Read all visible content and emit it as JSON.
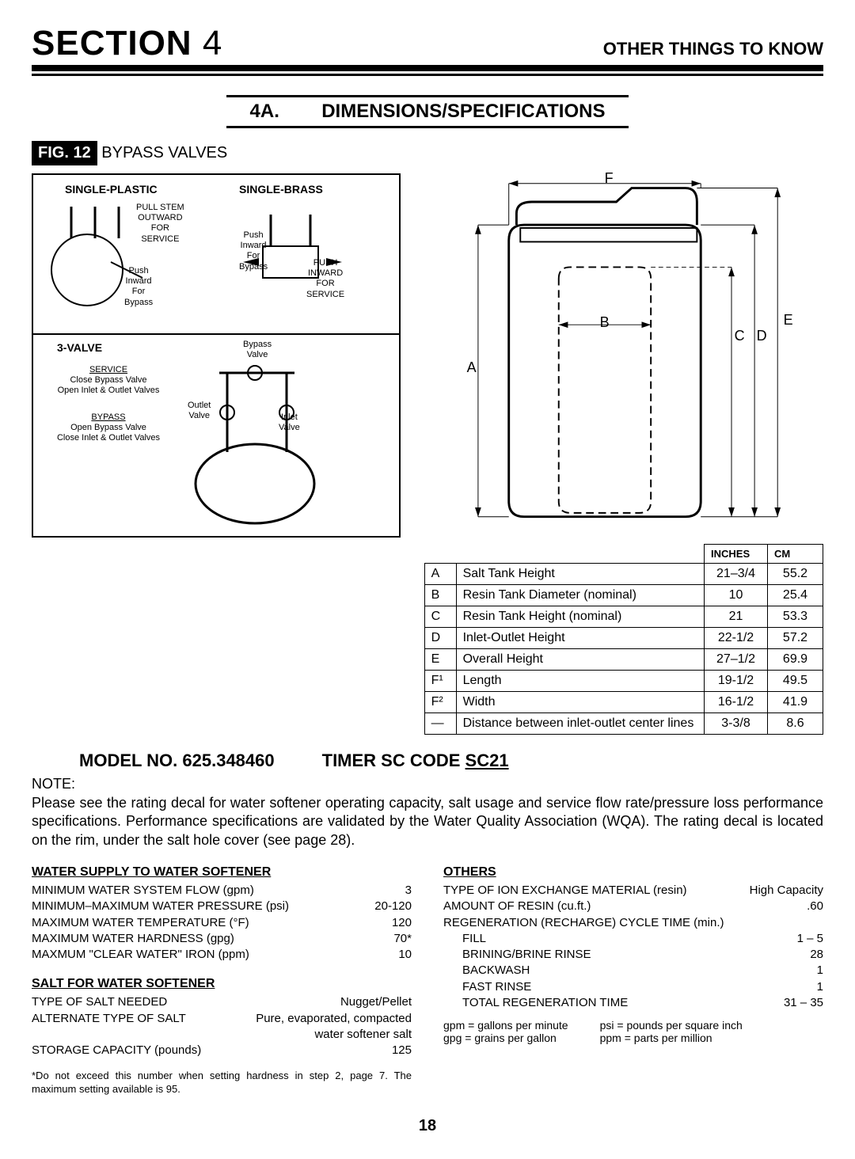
{
  "header": {
    "section_label": "SECTION",
    "section_number": "4",
    "right_title": "OTHER THINGS TO KNOW"
  },
  "subheader": {
    "label": "4A.",
    "title": "DIMENSIONS/SPECIFICATIONS"
  },
  "figure": {
    "prefix": "FIG. 12",
    "title": "BYPASS VALVES"
  },
  "diagram_labels": {
    "single_plastic": "SINGLE-PLASTIC",
    "single_brass": "SINGLE-BRASS",
    "pull_stem": "PULL STEM\nOUTWARD\nFOR\nSERVICE",
    "push_inward_bypass": "Push\nInward\nFor\nBypass",
    "push_inward_service": "PUSH\nINWARD\nFOR\nSERVICE",
    "three_valve": "3-VALVE",
    "bypass_valve": "Bypass\nValve",
    "service_text": "SERVICE\nClose Bypass Valve\nOpen Inlet & Outlet Valves",
    "bypass_text": "BYPASS\nOpen Bypass Valve\nClose Inlet & Outlet Valves",
    "outlet_valve": "Outlet\nValve",
    "inlet_valve": "Inlet\nValve",
    "push_inward_bypass2": "Push\nInward\nFor\nBypass"
  },
  "tank_letters": {
    "A": "A",
    "B": "B",
    "C": "C",
    "D": "D",
    "E": "E",
    "F": "F"
  },
  "dim_table": {
    "head_inches": "INCHES",
    "head_cm": "CM",
    "rows": [
      {
        "k": "A",
        "label": "Salt Tank Height",
        "in": "21–3/4",
        "cm": "55.2"
      },
      {
        "k": "B",
        "label": "Resin Tank Diameter (nominal)",
        "in": "10",
        "cm": "25.4"
      },
      {
        "k": "C",
        "label": "Resin Tank Height (nominal)",
        "in": "21",
        "cm": "53.3"
      },
      {
        "k": "D",
        "label": "Inlet-Outlet Height",
        "in": "22-1/2",
        "cm": "57.2"
      },
      {
        "k": "E",
        "label": "Overall Height",
        "in": "27–1/2",
        "cm": "69.9"
      },
      {
        "k": "F¹",
        "label": "Length",
        "in": "19-1/2",
        "cm": "49.5"
      },
      {
        "k": "F²",
        "label": "Width",
        "in": "16-1/2",
        "cm": "41.9"
      },
      {
        "k": "—",
        "label": "Distance between inlet-outlet center lines",
        "in": "3-3/8",
        "cm": "8.6"
      }
    ]
  },
  "model": {
    "model_no_label": "MODEL NO.",
    "model_no": "625.348460",
    "timer_label": "TIMER SC CODE",
    "timer_code": "SC21"
  },
  "note": {
    "head": "NOTE:",
    "body": "Please see the rating decal for water softener operating capacity, salt usage and service flow rate/pressure loss performance specifications. Performance specifications are validated by the Water Quality Association (WQA). The rating decal is located on the rim, under the salt hole cover (see page 28)."
  },
  "water_supply": {
    "head": "WATER SUPPLY TO WATER SOFTENER",
    "rows": [
      {
        "l": "MINIMUM WATER SYSTEM FLOW (gpm)",
        "v": "3"
      },
      {
        "l": "MINIMUM–MAXIMUM WATER PRESSURE (psi)",
        "v": "20-120"
      },
      {
        "l": "MAXIMUM WATER TEMPERATURE (°F)",
        "v": "120"
      },
      {
        "l": "MAXIMUM WATER HARDNESS (gpg)",
        "v": "70*"
      },
      {
        "l": "MAXMUM \"CLEAR WATER\" IRON (ppm)",
        "v": "10"
      }
    ]
  },
  "salt": {
    "head": "SALT FOR WATER SOFTENER",
    "rows": [
      {
        "l": "TYPE OF SALT NEEDED",
        "v": "Nugget/Pellet"
      },
      {
        "l": "ALTERNATE TYPE OF SALT",
        "v": "Pure, evaporated, compacted"
      },
      {
        "l": "",
        "v": "water softener salt"
      },
      {
        "l": "STORAGE CAPACITY (pounds)",
        "v": "125"
      }
    ]
  },
  "others": {
    "head": "OTHERS",
    "rows": [
      {
        "l": "TYPE OF ION EXCHANGE MATERIAL (resin)",
        "v": "High Capacity",
        "indent": false
      },
      {
        "l": "AMOUNT OF RESIN (cu.ft.)",
        "v": ".60",
        "indent": false
      },
      {
        "l": "REGENERATION (RECHARGE) CYCLE TIME (min.)",
        "v": "",
        "indent": false
      },
      {
        "l": "FILL",
        "v": "1 – 5",
        "indent": true
      },
      {
        "l": "BRINING/BRINE RINSE",
        "v": "28",
        "indent": true
      },
      {
        "l": "BACKWASH",
        "v": "1",
        "indent": true
      },
      {
        "l": "FAST RINSE",
        "v": "1",
        "indent": true
      },
      {
        "l": "TOTAL REGENERATION TIME",
        "v": "31 – 35",
        "indent": true
      }
    ]
  },
  "abbrev": {
    "gpm": "gpm = gallons per minute",
    "psi": "psi = pounds per square inch",
    "gpg": "gpg = grains per gallon",
    "ppm": "ppm = parts per million"
  },
  "footnote": "*Do not exceed this number when setting hardness in step 2, page 7. The maximum setting available is 95.",
  "page_number": "18",
  "colors": {
    "black": "#000000",
    "white": "#ffffff"
  }
}
